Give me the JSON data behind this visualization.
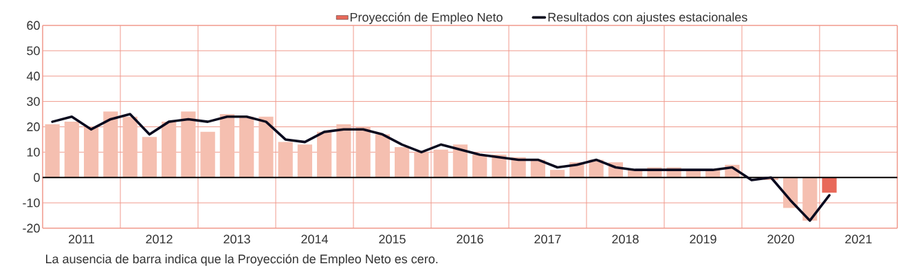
{
  "chart_data": {
    "type": "bar",
    "x": [
      2011.125,
      2011.375,
      2011.625,
      2011.875,
      2012.125,
      2012.375,
      2012.625,
      2012.875,
      2013.125,
      2013.375,
      2013.625,
      2013.875,
      2014.125,
      2014.375,
      2014.625,
      2014.875,
      2015.125,
      2015.375,
      2015.625,
      2015.875,
      2016.125,
      2016.375,
      2016.625,
      2016.875,
      2017.125,
      2017.375,
      2017.625,
      2017.875,
      2018.125,
      2018.375,
      2018.625,
      2018.875,
      2019.125,
      2019.375,
      2019.625,
      2019.875,
      2020.125,
      2020.375,
      2020.625,
      2020.875,
      2021.125
    ],
    "series": [
      {
        "name": "Proyección de Empleo Neto",
        "color": "#e8695a",
        "colors": [
          "#f5bfb0",
          "#f5bfb0",
          "#f5bfb0",
          "#f5bfb0",
          "#f5bfb0",
          "#f5bfb0",
          "#f5bfb0",
          "#f5bfb0",
          "#f5bfb0",
          "#f5bfb0",
          "#f5bfb0",
          "#f5bfb0",
          "#f5bfb0",
          "#f5bfb0",
          "#f5bfb0",
          "#f5bfb0",
          "#f5bfb0",
          "#f5bfb0",
          "#f5bfb0",
          "#f5bfb0",
          "#f5bfb0",
          "#f5bfb0",
          "#f5bfb0",
          "#f5bfb0",
          "#f5bfb0",
          "#f5bfb0",
          "#f5bfb0",
          "#f5bfb0",
          "#f5bfb0",
          "#f5bfb0",
          "#f5bfb0",
          "#f5bfb0",
          "#f5bfb0",
          "#f5bfb0",
          "#f5bfb0",
          "#f5bfb0",
          "#f5bfb0",
          "#f5bfb0",
          "#f5bfb0",
          "#f5bfb0",
          "#e8695a"
        ],
        "values": [
          21,
          22,
          20,
          26,
          24,
          16,
          22,
          26,
          18,
          25,
          24,
          24,
          14,
          13,
          18,
          21,
          20,
          17,
          12,
          10,
          11,
          13,
          9,
          9,
          8,
          7,
          3,
          6,
          7,
          6,
          3,
          4,
          4,
          3,
          3,
          5,
          0,
          -1,
          -12,
          -17,
          -6
        ]
      },
      {
        "type": "line",
        "name": "Resultados con ajustes estacionales",
        "color": "#0a0a1e",
        "values": [
          22,
          24,
          19,
          23,
          25,
          17,
          22,
          23,
          22,
          24,
          24,
          22,
          15,
          14,
          18,
          19,
          19,
          17,
          13,
          10,
          13,
          11,
          9,
          8,
          7,
          7,
          4,
          5,
          7,
          4,
          3,
          3,
          3,
          3,
          3,
          4,
          -1,
          0,
          -9,
          -17,
          -7
        ]
      }
    ],
    "xlim": [
      2011,
      2022
    ],
    "xticks": [
      {
        "value": 2011,
        "label": null
      },
      {
        "value": 2012,
        "label": null
      },
      {
        "value": 2013,
        "label": null
      },
      {
        "value": 2014,
        "label": null
      },
      {
        "value": 2015,
        "label": null
      },
      {
        "value": 2016,
        "label": null
      },
      {
        "value": 2017,
        "label": null
      },
      {
        "value": 2018,
        "label": null
      },
      {
        "value": 2019,
        "label": null
      },
      {
        "value": 2020,
        "label": null
      },
      {
        "value": 2021,
        "label": null
      },
      {
        "value": 2022,
        "label": null
      },
      {
        "value": 2011.5,
        "label": "2011"
      },
      {
        "value": 2012.5,
        "label": "2012"
      },
      {
        "value": 2013.5,
        "label": "2013"
      },
      {
        "value": 2014.5,
        "label": "2014"
      },
      {
        "value": 2015.5,
        "label": "2015"
      },
      {
        "value": 2016.5,
        "label": "2016"
      },
      {
        "value": 2017.5,
        "label": "2017"
      },
      {
        "value": 2018.5,
        "label": "2018"
      },
      {
        "value": 2019.5,
        "label": "2019"
      },
      {
        "value": 2020.5,
        "label": "2020"
      },
      {
        "value": 2021.5,
        "label": "2021"
      }
    ],
    "ylim": [
      -20,
      60
    ],
    "yticks": [
      -20,
      -10,
      0,
      10,
      20,
      30,
      40,
      50,
      60
    ],
    "grid": true,
    "legend": "top",
    "ref_lines": [
      {
        "axis": "y",
        "value": 0,
        "color": "#000000"
      }
    ],
    "annotations": [
      "La ausencia de barra indica que la Proyección de Empleo Neto es cero."
    ]
  }
}
